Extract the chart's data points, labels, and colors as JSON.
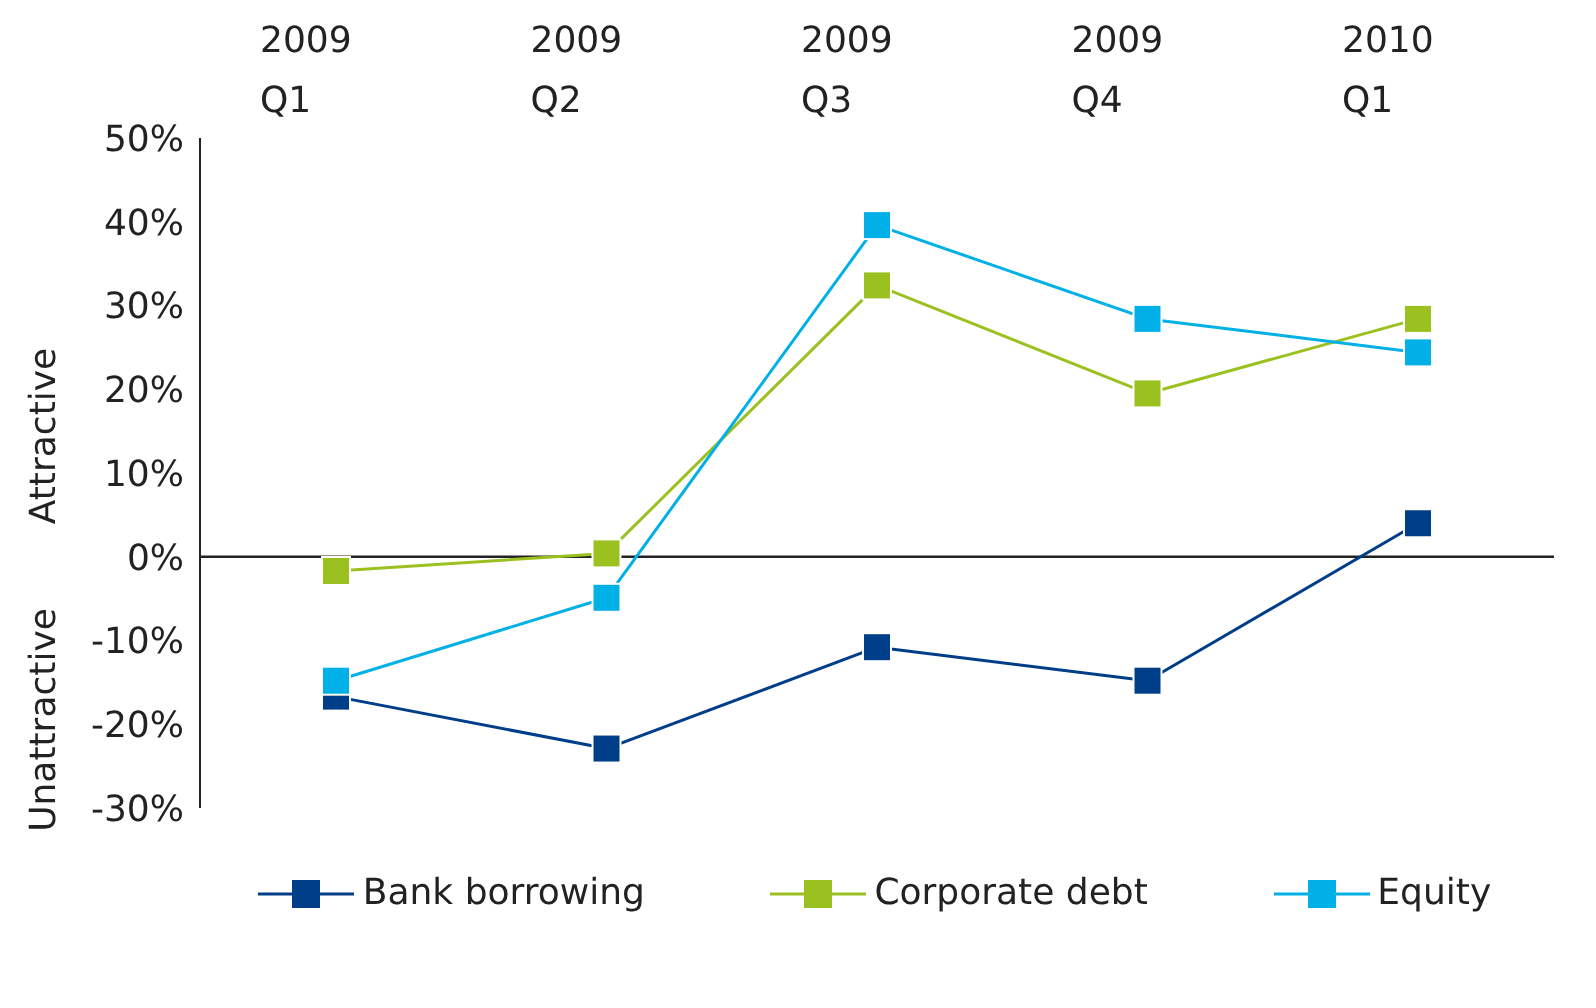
{
  "chart_data": {
    "type": "line",
    "categories": [
      "2009\nQ1",
      "2009\nQ2",
      "2009\nQ3",
      "2009\nQ4",
      "2010\nQ1"
    ],
    "series": [
      {
        "name": "Bank borrowing",
        "color": "#003e8a",
        "values": [
          -16.7,
          -22.9,
          -10.8,
          -14.8,
          4.0
        ]
      },
      {
        "name": "Corporate debt",
        "color": "#9bc121",
        "values": [
          -1.7,
          0.4,
          32.4,
          19.5,
          28.4
        ]
      },
      {
        "name": "Equity",
        "color": "#00b0e6",
        "values": [
          -14.8,
          -4.9,
          39.6,
          28.4,
          24.4
        ]
      }
    ],
    "ylim": [
      -30,
      50
    ],
    "yticks": [
      {
        "value": -30,
        "label": "-30%"
      },
      {
        "value": -20,
        "label": "-20%"
      },
      {
        "value": -10,
        "label": "-10%"
      },
      {
        "value": 0,
        "label": "0%"
      },
      {
        "value": 10,
        "label": "10%"
      },
      {
        "value": 20,
        "label": "20%"
      },
      {
        "value": 30,
        "label": "30%"
      },
      {
        "value": 40,
        "label": "40%"
      },
      {
        "value": 50,
        "label": "50%"
      }
    ],
    "annotations": [
      "Attractive",
      "Unattractive"
    ],
    "ref_lines": [
      {
        "axis": "y",
        "value": 0,
        "color": "#222222"
      }
    ],
    "marker": "square",
    "line_style": "solid",
    "legend": "bottom",
    "grid": false
  }
}
